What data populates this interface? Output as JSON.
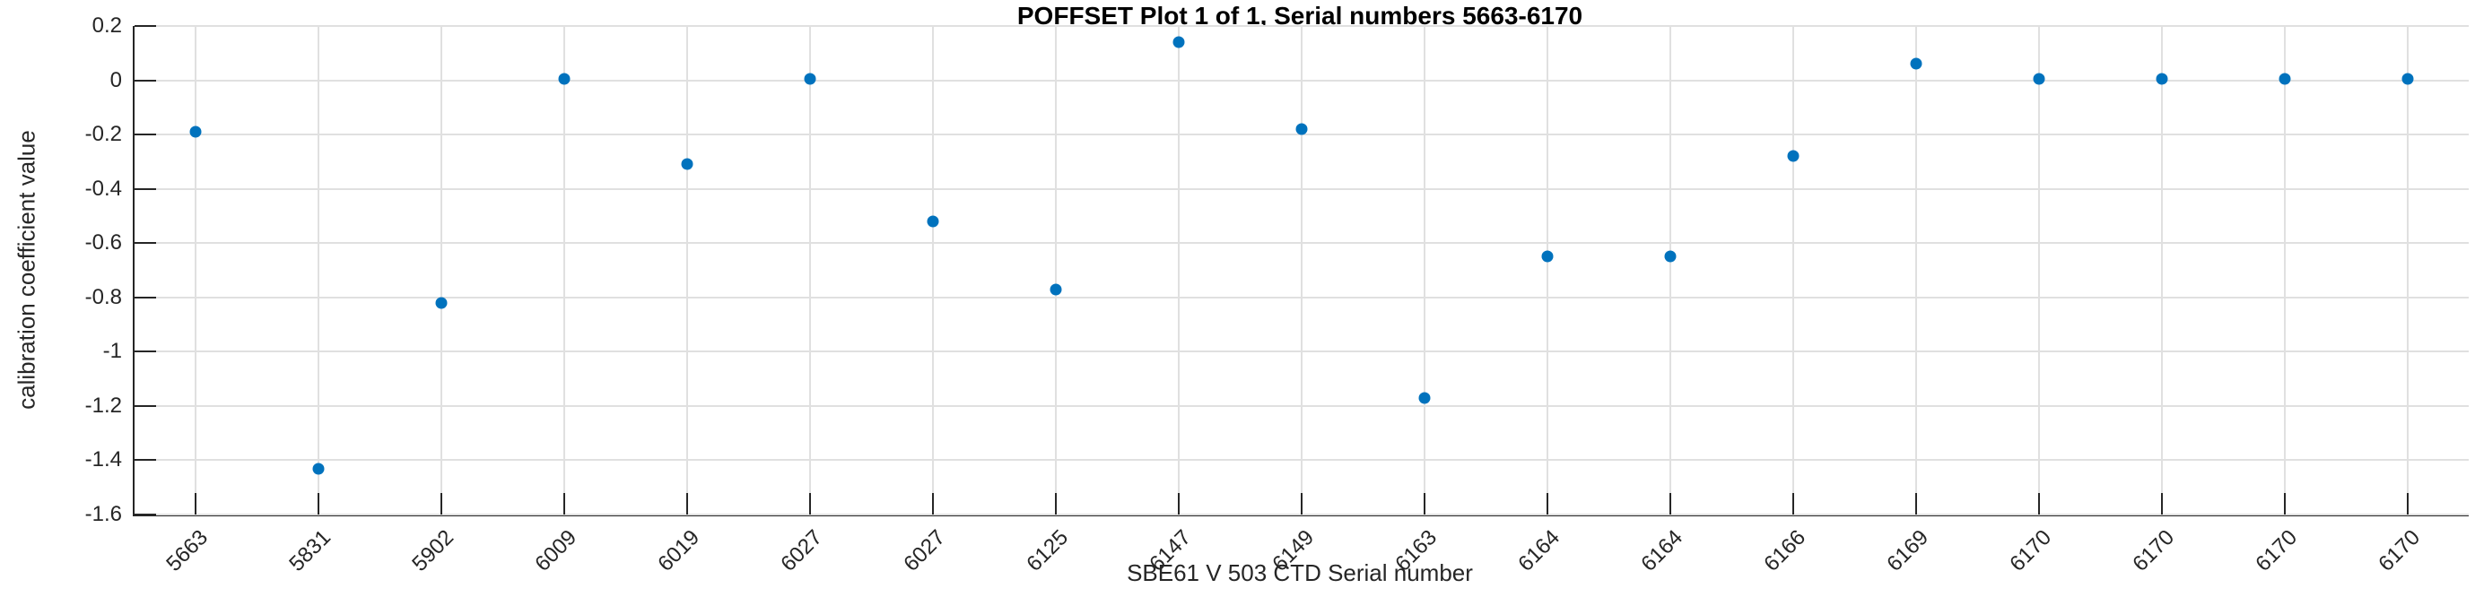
{
  "chart_data": {
    "type": "scatter",
    "title": "POFFSET Plot 1 of 1, Serial numbers 5663-6170",
    "xlabel": "SBE61 V 503 CTD Serial number",
    "ylabel": "calibration coefficient value",
    "categories": [
      "5663",
      "5831",
      "5902",
      "6009",
      "6019",
      "6027",
      "6027",
      "6125",
      "6147",
      "6149",
      "6163",
      "6164",
      "6164",
      "6166",
      "6169",
      "6170",
      "6170",
      "6170",
      "6170"
    ],
    "values": [
      -0.19,
      -1.43,
      -0.82,
      0.005,
      -0.31,
      0.005,
      -0.52,
      -0.77,
      0.14,
      -0.18,
      -1.17,
      -0.65,
      -0.65,
      -0.28,
      0.06,
      0.005,
      0.005,
      0.005,
      0.005
    ],
    "ylim": [
      -1.6,
      0.2
    ],
    "yticks": [
      0.2,
      0,
      -0.2,
      -0.4,
      -0.6,
      -0.8,
      -1,
      -1.2,
      -1.4,
      -1.6
    ],
    "ytick_labels": [
      "0.2",
      "0",
      "-0.2",
      "-0.4",
      "-0.6",
      "-0.8",
      "-1",
      "-1.2",
      "-1.4",
      "-1.6"
    ],
    "xtick_rotation_deg": 45,
    "grid": true,
    "legend_position": "none",
    "marker_color": "#0072BD",
    "grid_color": "#e0e0e0",
    "axis_color": "#262626",
    "text_color": "#262626"
  }
}
